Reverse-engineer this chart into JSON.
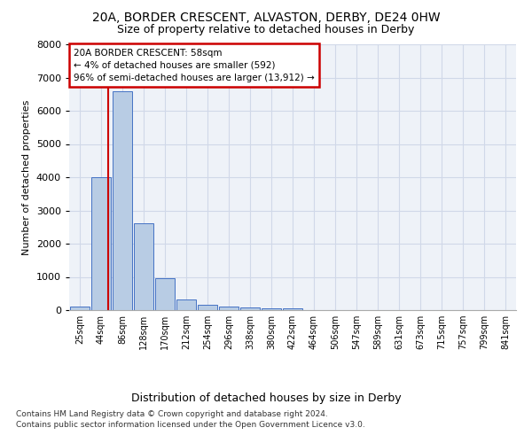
{
  "title_line1": "20A, BORDER CRESCENT, ALVASTON, DERBY, DE24 0HW",
  "title_line2": "Size of property relative to detached houses in Derby",
  "xlabel": "Distribution of detached houses by size in Derby",
  "ylabel": "Number of detached properties",
  "categories": [
    "25sqm",
    "44sqm",
    "86sqm",
    "128sqm",
    "170sqm",
    "212sqm",
    "254sqm",
    "296sqm",
    "338sqm",
    "380sqm",
    "422sqm",
    "464sqm",
    "506sqm",
    "547sqm",
    "589sqm",
    "631sqm",
    "673sqm",
    "715sqm",
    "757sqm",
    "799sqm",
    "841sqm"
  ],
  "values": [
    100,
    4000,
    6600,
    2620,
    950,
    330,
    150,
    120,
    80,
    60,
    60,
    0,
    0,
    0,
    0,
    0,
    0,
    0,
    0,
    0,
    0
  ],
  "bar_color": "#b8cce4",
  "bar_edge_color": "#4472c4",
  "grid_color": "#d0d8e8",
  "background_color": "#eef2f8",
  "annotation_box_text": "20A BORDER CRESCENT: 58sqm\n← 4% of detached houses are smaller (592)\n96% of semi-detached houses are larger (13,912) →",
  "annotation_box_color": "#cc0000",
  "ylim": [
    0,
    8000
  ],
  "yticks": [
    0,
    1000,
    2000,
    3000,
    4000,
    5000,
    6000,
    7000,
    8000
  ],
  "footer_line1": "Contains HM Land Registry data © Crown copyright and database right 2024.",
  "footer_line2": "Contains public sector information licensed under the Open Government Licence v3.0.",
  "title_fontsize": 10,
  "subtitle_fontsize": 9,
  "ylabel_fontsize": 8,
  "xlabel_fontsize": 9,
  "tick_fontsize": 7,
  "ytick_fontsize": 8,
  "footer_fontsize": 6.5,
  "property_line_x": 1.35
}
